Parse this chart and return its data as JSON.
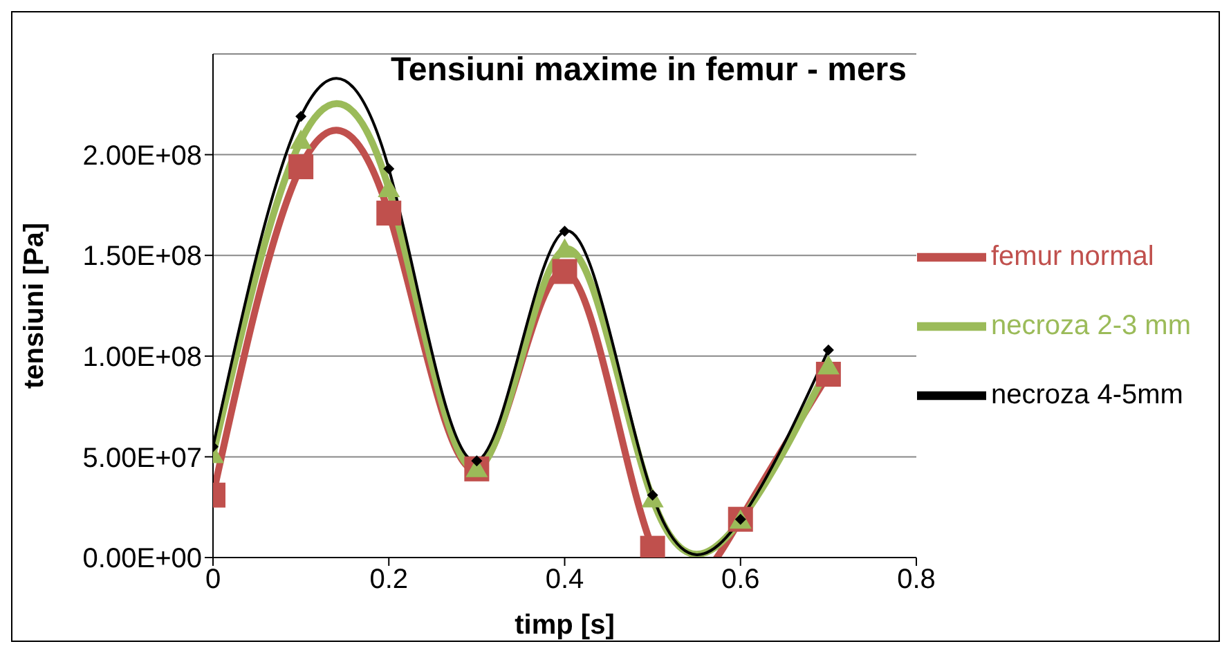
{
  "chart_data": {
    "type": "line",
    "title": "Tensiuni maxime in femur - mers",
    "xlabel": "timp [s]",
    "ylabel": "tensiuni [Pa]",
    "x": [
      0,
      0.1,
      0.2,
      0.3,
      0.4,
      0.5,
      0.6,
      0.7
    ],
    "series": [
      {
        "name": "femur normal",
        "color": "#c0504d",
        "marker": "square",
        "values": [
          31000000.0,
          194000000.0,
          171000000.0,
          44000000.0,
          142000000.0,
          4600000.0,
          19000000.0,
          91000000.0
        ]
      },
      {
        "name": "necroza 2-3 mm",
        "color": "#9bbb59",
        "marker": "triangle",
        "values": [
          51000000.0,
          207000000.0,
          183000000.0,
          44000000.0,
          153000000.0,
          29000000.0,
          18500000.0,
          95000000.0
        ]
      },
      {
        "name": "necroza 4-5mm",
        "color": "#000000",
        "marker": "diamond",
        "values": [
          55000000.0,
          219000000.0,
          193000000.0,
          48000000.0,
          162000000.0,
          31000000.0,
          19000000.0,
          103000000.0
        ]
      }
    ],
    "xlim": [
      0,
      0.8
    ],
    "xticks": [
      0,
      0.2,
      0.4,
      0.6,
      0.8
    ],
    "ylim": [
      0,
      250000000.0
    ],
    "yticks": [
      {
        "value": 0,
        "label": "0.00E+00"
      },
      {
        "value": 50000000.0,
        "label": "5.00E+07"
      },
      {
        "value": 100000000.0,
        "label": "1.00E+08"
      },
      {
        "value": 150000000.0,
        "label": "1.50E+08"
      },
      {
        "value": 200000000.0,
        "label": "2.00E+08"
      }
    ],
    "grid": "y",
    "legend": "right"
  }
}
